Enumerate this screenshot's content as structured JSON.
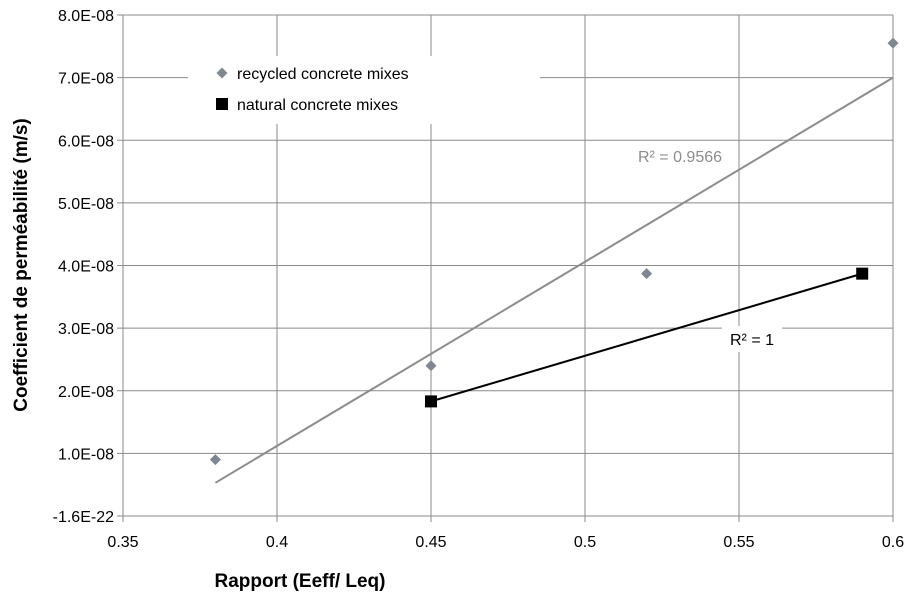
{
  "chart_data": {
    "type": "scatter",
    "xlabel": "Rapport (Eeff/ Leq)",
    "ylabel": "Coefficient de perméabilité (m/s)",
    "xlim": [
      0.35,
      0.6
    ],
    "ylim": [
      0,
      8e-08
    ],
    "x_ticks": [
      "0.35",
      "0.4",
      "0.45",
      "0.5",
      "0.55",
      "0.6"
    ],
    "x_tick_values": [
      0.35,
      0.4,
      0.45,
      0.5,
      0.55,
      0.6
    ],
    "y_ticks": [
      "-1.6E-22",
      "1.0E-08",
      "2.0E-08",
      "3.0E-08",
      "4.0E-08",
      "5.0E-08",
      "6.0E-08",
      "7.0E-08",
      "8.0E-08"
    ],
    "y_tick_values": [
      0,
      1e-08,
      2e-08,
      3e-08,
      4e-08,
      5e-08,
      6e-08,
      7e-08,
      8e-08
    ],
    "grid": true,
    "legend_position": "top-left",
    "series": [
      {
        "name": "recycled concrete mixes",
        "marker": "diamond",
        "color": "#7f8790",
        "points": [
          {
            "x": 0.38,
            "y": 9e-09
          },
          {
            "x": 0.45,
            "y": 2.4e-08
          },
          {
            "x": 0.52,
            "y": 3.87e-08
          },
          {
            "x": 0.6,
            "y": 7.55e-08
          }
        ],
        "trendline": {
          "type": "linear",
          "color": "#8c8c8c",
          "from": {
            "x": 0.38,
            "y": 5.3e-09
          },
          "to": {
            "x": 0.6,
            "y": 7e-08
          },
          "r2_label": "R² = 0.9566"
        }
      },
      {
        "name": "natural concrete mixes",
        "marker": "square",
        "color": "#000000",
        "points": [
          {
            "x": 0.45,
            "y": 1.83e-08
          },
          {
            "x": 0.59,
            "y": 3.87e-08
          }
        ],
        "trendline": {
          "type": "linear",
          "color": "#000000",
          "from": {
            "x": 0.45,
            "y": 1.83e-08
          },
          "to": {
            "x": 0.59,
            "y": 3.87e-08
          },
          "r2_label": "R² = 1"
        }
      }
    ]
  }
}
